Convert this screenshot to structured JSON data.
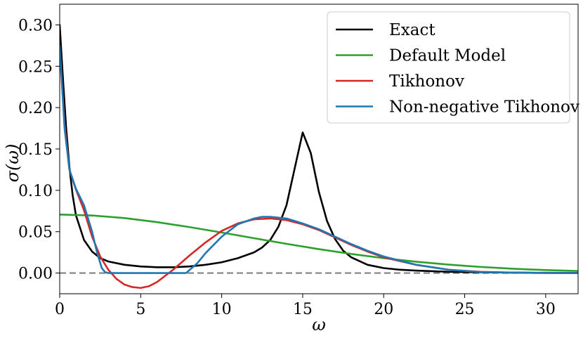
{
  "chart_data": {
    "type": "line",
    "title": "",
    "xlabel": "ω",
    "ylabel": "σ(ω)",
    "xlim": [
      0,
      32
    ],
    "ylim": [
      -0.025,
      0.325
    ],
    "xticks": [
      0,
      5,
      10,
      15,
      20,
      25,
      30
    ],
    "xtick_labels": [
      "0",
      "5",
      "10",
      "15",
      "20",
      "25",
      "30"
    ],
    "yticks": [
      0.0,
      0.05,
      0.1,
      0.15,
      0.2,
      0.25,
      0.3
    ],
    "ytick_labels": [
      "0.00",
      "0.05",
      "0.10",
      "0.15",
      "0.20",
      "0.25",
      "0.30"
    ],
    "grid": false,
    "legend_position": "top-right",
    "reference_line": {
      "y": 0.0,
      "style": "dashed",
      "color": "#808080"
    },
    "series": [
      {
        "name": "Exact",
        "color": "#000000",
        "x": [
          0,
          0.2,
          0.4,
          0.6,
          0.8,
          1.0,
          1.5,
          2.0,
          2.5,
          3.0,
          4.0,
          5.0,
          6.0,
          7.0,
          8.0,
          9.0,
          10.0,
          11.0,
          12.0,
          12.5,
          13.0,
          13.5,
          14.0,
          14.5,
          15.0,
          15.5,
          16.0,
          16.5,
          17.0,
          17.5,
          18.0,
          19.0,
          20.0,
          21.0,
          22.0,
          24.0,
          26.0,
          28.0,
          30.0,
          32.0
        ],
        "values": [
          0.3,
          0.235,
          0.175,
          0.128,
          0.094,
          0.07,
          0.04,
          0.026,
          0.018,
          0.014,
          0.01,
          0.008,
          0.007,
          0.007,
          0.008,
          0.01,
          0.013,
          0.018,
          0.025,
          0.031,
          0.04,
          0.056,
          0.082,
          0.126,
          0.17,
          0.145,
          0.098,
          0.063,
          0.041,
          0.027,
          0.019,
          0.01,
          0.006,
          0.004,
          0.003,
          0.0015,
          0.001,
          0.0005,
          0.0003,
          0.0002
        ]
      },
      {
        "name": "Default Model",
        "color": "#2ca02c",
        "x": [
          0,
          2,
          4,
          6,
          8,
          10,
          12,
          14,
          16,
          18,
          20,
          22,
          24,
          26,
          28,
          30,
          32
        ],
        "values": [
          0.0707,
          0.0696,
          0.0665,
          0.0616,
          0.0556,
          0.049,
          0.0421,
          0.0353,
          0.0289,
          0.0231,
          0.018,
          0.0137,
          0.0102,
          0.0074,
          0.0052,
          0.0036,
          0.0025
        ]
      },
      {
        "name": "Tikhonov",
        "color": "#d62728",
        "x": [
          0,
          0.3,
          0.6,
          1.0,
          1.5,
          2.0,
          2.5,
          3.0,
          3.5,
          4.0,
          4.5,
          5.0,
          5.5,
          6.0,
          7.0,
          8.0,
          9.0,
          10.0,
          11.0,
          12.0,
          13.0,
          14.0,
          15.0,
          16.0,
          17.0,
          18.0,
          19.0,
          20.0,
          22.0,
          24.0,
          26.0,
          28.0,
          30.0,
          32.0
        ],
        "values": [
          0.27,
          0.18,
          0.125,
          0.101,
          0.076,
          0.044,
          0.02,
          0.004,
          -0.007,
          -0.014,
          -0.017,
          -0.018,
          -0.016,
          -0.011,
          0.004,
          0.021,
          0.037,
          0.051,
          0.06,
          0.065,
          0.066,
          0.064,
          0.059,
          0.052,
          0.043,
          0.034,
          0.026,
          0.019,
          0.01,
          0.004,
          0.0015,
          0.0005,
          0.0001,
          0.0
        ]
      },
      {
        "name": "Non-negative Tikhonov",
        "color": "#1f77b4",
        "x": [
          0,
          0.3,
          0.6,
          1.0,
          1.5,
          2.0,
          2.3,
          2.6,
          2.8,
          3.0,
          4.0,
          5.0,
          6.0,
          7.0,
          7.5,
          7.8,
          8.5,
          9.0,
          10.0,
          11.0,
          12.0,
          12.5,
          13.0,
          14.0,
          15.0,
          16.0,
          17.0,
          18.0,
          19.0,
          20.0,
          22.0,
          24.0,
          26.0,
          28.0,
          30.0,
          32.0
        ],
        "values": [
          0.275,
          0.175,
          0.125,
          0.102,
          0.082,
          0.05,
          0.025,
          0.006,
          0.001,
          0.0,
          0.0,
          0.0,
          0.0,
          0.0,
          0.0,
          0.0,
          0.012,
          0.024,
          0.044,
          0.059,
          0.066,
          0.068,
          0.068,
          0.066,
          0.06,
          0.053,
          0.044,
          0.035,
          0.027,
          0.02,
          0.01,
          0.004,
          0.0012,
          0.0004,
          0.0001,
          0.0
        ]
      }
    ]
  }
}
